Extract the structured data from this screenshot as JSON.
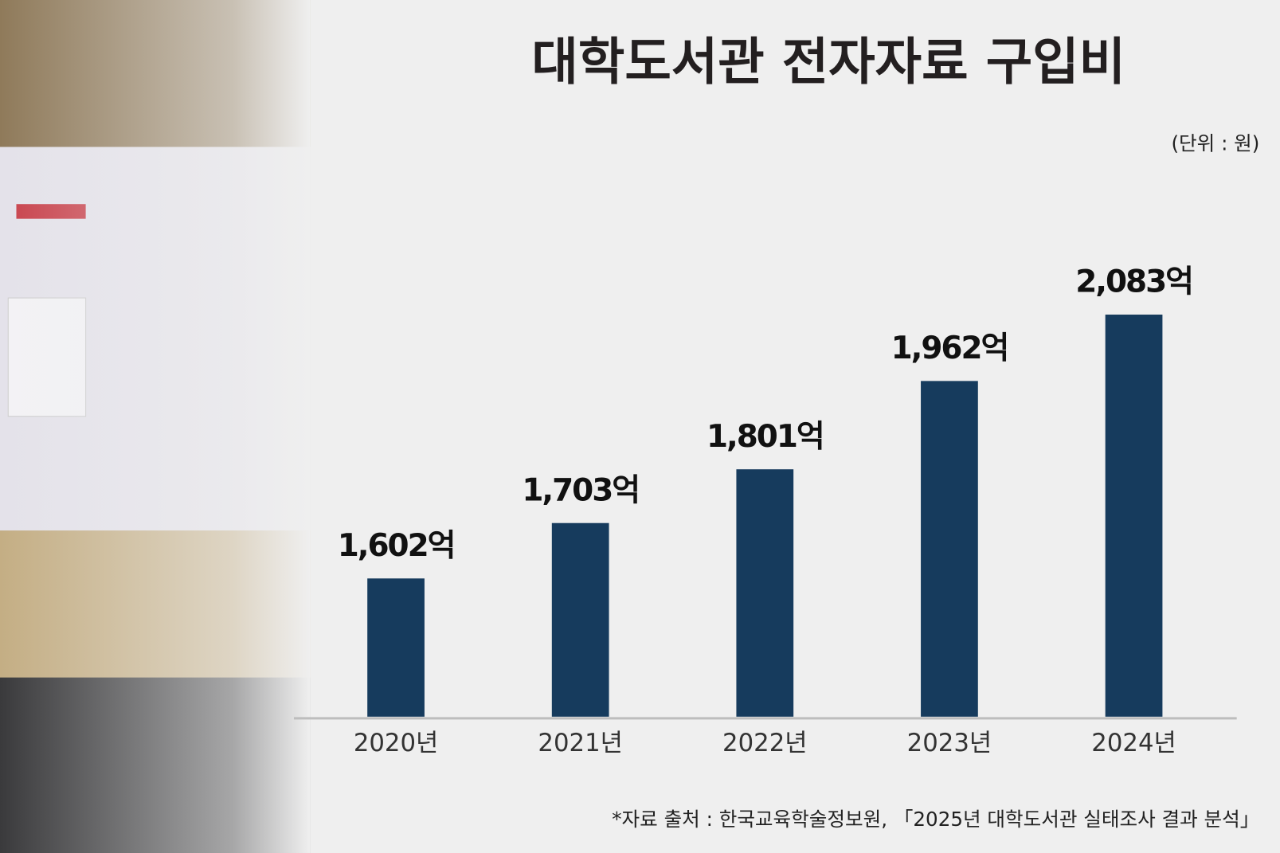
{
  "chart_data": {
    "type": "bar",
    "title": "대학도서관 전자자료 구입비",
    "unit_note": "(단위 : 원)",
    "source": "*자료 출처 : 한국교육학술정보원, 「2025년 대학도서관 실태조사 결과 분석」",
    "categories": [
      "2020년",
      "2021년",
      "2022년",
      "2023년",
      "2024년"
    ],
    "values": [
      1602,
      1703,
      1801,
      1962,
      2083
    ],
    "value_labels": [
      "1,602억",
      "1,703억",
      "1,801억",
      "1,962억",
      "2,083억"
    ],
    "color": "#163b5d",
    "ylim": [
      1350,
      2100
    ]
  }
}
